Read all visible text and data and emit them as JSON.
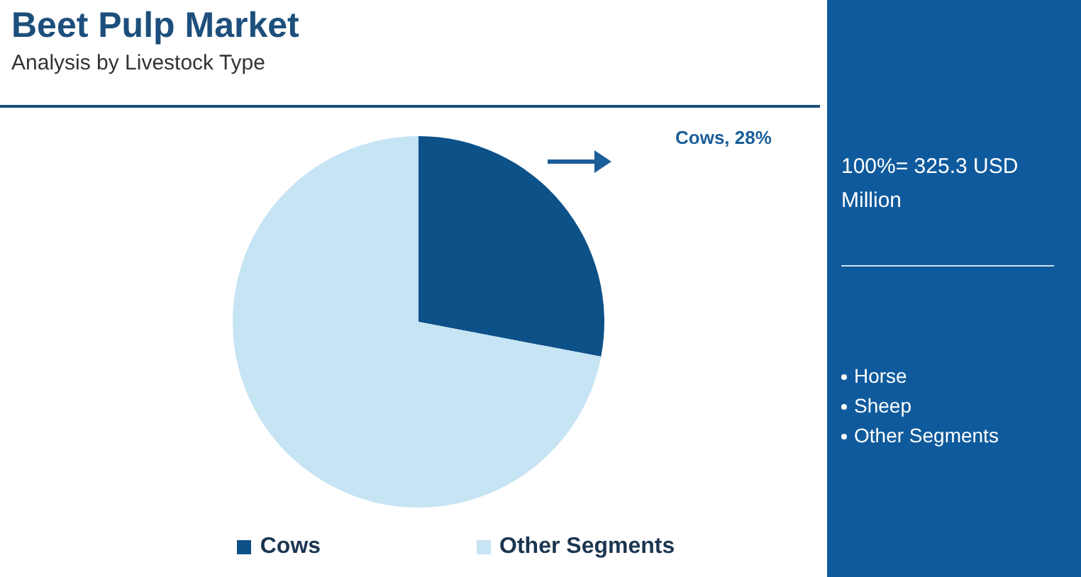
{
  "chart_data": {
    "type": "pie",
    "title": "Beet Pulp Market",
    "subtitle": "Analysis by Livestock Type",
    "categories": [
      "Cows",
      "Other Segments"
    ],
    "values": [
      28,
      72
    ],
    "colors": [
      "#0d5189",
      "#c6e4f4"
    ],
    "value_labels": [
      "Cows, 28%",
      null
    ],
    "legend": "bottom",
    "annotations": [
      "100%= 325.3 USD Million",
      "Horse",
      "Sheep",
      "Other Segments"
    ]
  }
}
